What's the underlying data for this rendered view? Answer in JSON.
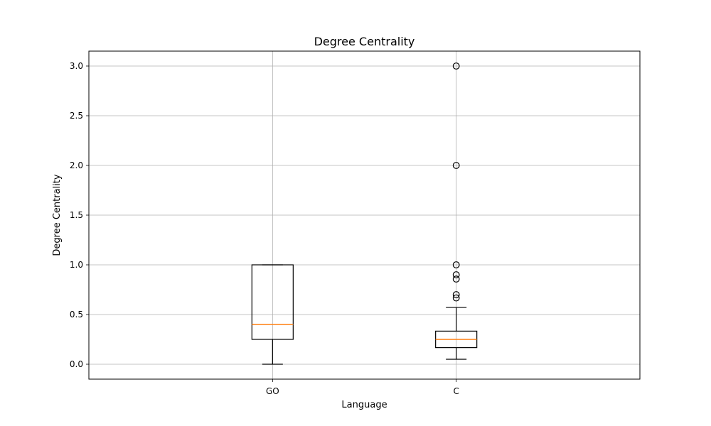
{
  "chart_data": {
    "type": "box",
    "title": "Degree Centrality",
    "xlabel": "Language",
    "ylabel": "Degree Centrality",
    "ylim": [
      -0.15,
      3.15
    ],
    "yticks": [
      0.0,
      0.5,
      1.0,
      1.5,
      2.0,
      2.5,
      3.0
    ],
    "ytick_labels": [
      "0.0",
      "0.5",
      "1.0",
      "1.5",
      "2.0",
      "2.5",
      "3.0"
    ],
    "grid": true,
    "categories": [
      "GO",
      "C"
    ],
    "boxes": [
      {
        "category": "GO",
        "whisker_low": 0.0,
        "q1": 0.25,
        "median": 0.4,
        "q3": 1.0,
        "whisker_high": 1.0,
        "outliers": []
      },
      {
        "category": "C",
        "whisker_low": 0.05,
        "q1": 0.167,
        "median": 0.25,
        "q3": 0.333,
        "whisker_high": 0.571,
        "outliers": [
          0.667,
          0.7,
          0.857,
          0.9,
          1.0,
          2.0,
          3.0
        ]
      }
    ],
    "colors": {
      "box": "#000000",
      "median": "#ff7f0e",
      "grid": "#b0b0b0"
    }
  }
}
